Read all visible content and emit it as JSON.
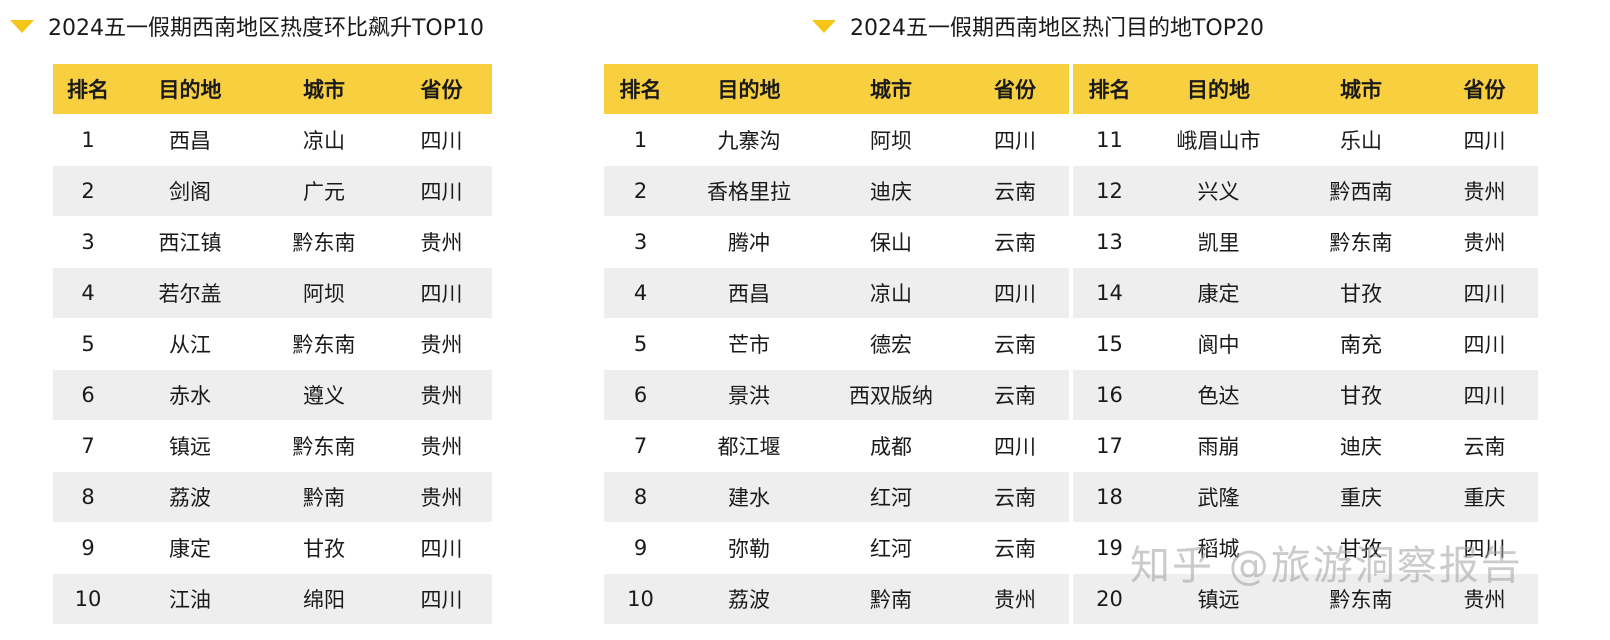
{
  "left": {
    "title": "2024五一假期西南地区热度环比飙升TOP10",
    "headers": [
      "排名",
      "目的地",
      "城市",
      "省份"
    ],
    "rows": [
      [
        "1",
        "西昌",
        "凉山",
        "四川"
      ],
      [
        "2",
        "剑阁",
        "广元",
        "四川"
      ],
      [
        "3",
        "西江镇",
        "黔东南",
        "贵州"
      ],
      [
        "4",
        "若尔盖",
        "阿坝",
        "四川"
      ],
      [
        "5",
        "从江",
        "黔东南",
        "贵州"
      ],
      [
        "6",
        "赤水",
        "遵义",
        "贵州"
      ],
      [
        "7",
        "镇远",
        "黔东南",
        "贵州"
      ],
      [
        "8",
        "荔波",
        "黔南",
        "贵州"
      ],
      [
        "9",
        "康定",
        "甘孜",
        "四川"
      ],
      [
        "10",
        "江油",
        "绵阳",
        "四川"
      ]
    ]
  },
  "right": {
    "title": "2024五一假期西南地区热门目的地TOP20",
    "headers": [
      "排名",
      "目的地",
      "城市",
      "省份"
    ],
    "rows_a": [
      [
        "1",
        "九寨沟",
        "阿坝",
        "四川"
      ],
      [
        "2",
        "香格里拉",
        "迪庆",
        "云南"
      ],
      [
        "3",
        "腾冲",
        "保山",
        "云南"
      ],
      [
        "4",
        "西昌",
        "凉山",
        "四川"
      ],
      [
        "5",
        "芒市",
        "德宏",
        "云南"
      ],
      [
        "6",
        "景洪",
        "西双版纳",
        "云南"
      ],
      [
        "7",
        "都江堰",
        "成都",
        "四川"
      ],
      [
        "8",
        "建水",
        "红河",
        "云南"
      ],
      [
        "9",
        "弥勒",
        "红河",
        "云南"
      ],
      [
        "10",
        "荔波",
        "黔南",
        "贵州"
      ]
    ],
    "rows_b": [
      [
        "11",
        "峨眉山市",
        "乐山",
        "四川"
      ],
      [
        "12",
        "兴义",
        "黔西南",
        "贵州"
      ],
      [
        "13",
        "凯里",
        "黔东南",
        "贵州"
      ],
      [
        "14",
        "康定",
        "甘孜",
        "四川"
      ],
      [
        "15",
        "阆中",
        "南充",
        "四川"
      ],
      [
        "16",
        "色达",
        "甘孜",
        "四川"
      ],
      [
        "17",
        "雨崩",
        "迪庆",
        "云南"
      ],
      [
        "18",
        "武隆",
        "重庆",
        "重庆"
      ],
      [
        "19",
        "稻城",
        "甘孜",
        "四川"
      ],
      [
        "20",
        "镇远",
        "黔东南",
        "贵州"
      ]
    ]
  },
  "watermark": "知乎 @旅游洞察报告"
}
